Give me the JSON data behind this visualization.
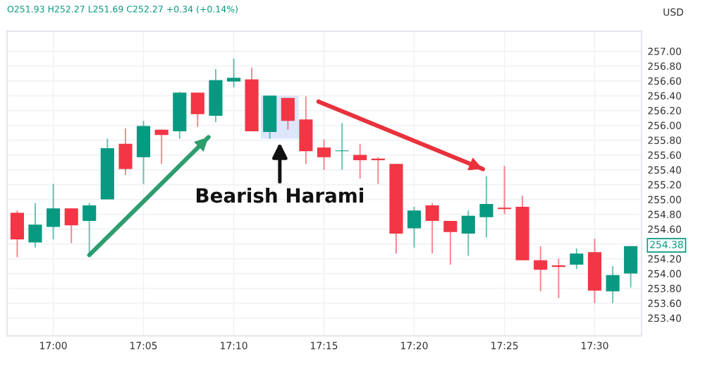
{
  "chart_data": {
    "type": "candlestick",
    "ylabel": "USD",
    "annotations": [
      "O251.93 H252.27 L251.69 C252.27 +0.34 (+0.14%)",
      "Bearish Harami",
      {
        "text": "254.38",
        "x": 17.5433,
        "y": 254.38
      }
    ],
    "x": [
      16.9667,
      16.9833,
      17.0,
      17.0167,
      17.0333,
      17.05,
      17.0667,
      17.0833,
      17.1,
      17.1167,
      17.1333,
      17.15,
      17.1667,
      17.1833,
      17.2,
      17.2167,
      17.2333,
      17.25,
      17.2667,
      17.2833,
      17.3,
      17.3167,
      17.3333,
      17.35,
      17.3667,
      17.3833,
      17.4,
      17.4167,
      17.4333,
      17.45,
      17.4667,
      17.4833,
      17.5,
      17.5167,
      17.5333
    ],
    "ohlc": [
      [
        254.82,
        254.85,
        254.22,
        254.46
      ],
      [
        254.42,
        254.95,
        254.35,
        254.66
      ],
      [
        254.63,
        255.21,
        254.46,
        254.88
      ],
      [
        254.88,
        254.88,
        254.41,
        254.65
      ],
      [
        254.71,
        254.95,
        254.25,
        254.92
      ],
      [
        255.0,
        255.82,
        255.0,
        255.69
      ],
      [
        255.75,
        255.96,
        255.33,
        255.41
      ],
      [
        255.57,
        256.06,
        255.21,
        255.99
      ],
      [
        255.94,
        255.94,
        255.48,
        255.87
      ],
      [
        255.92,
        256.45,
        255.82,
        256.44
      ],
      [
        256.44,
        256.44,
        255.98,
        256.15
      ],
      [
        256.13,
        256.76,
        256.04,
        256.61
      ],
      [
        256.59,
        256.9,
        256.51,
        256.64
      ],
      [
        256.62,
        256.78,
        255.92,
        255.92
      ],
      [
        255.91,
        256.4,
        255.82,
        256.4
      ],
      [
        256.37,
        256.37,
        255.94,
        256.06
      ],
      [
        256.08,
        256.39,
        255.48,
        255.65
      ],
      [
        255.7,
        255.81,
        255.4,
        255.57
      ],
      [
        255.65,
        256.03,
        255.4,
        255.66
      ],
      [
        255.6,
        255.75,
        255.28,
        255.53
      ],
      [
        255.55,
        255.57,
        255.21,
        255.53
      ],
      [
        255.48,
        255.48,
        254.27,
        254.54
      ],
      [
        254.61,
        254.9,
        254.35,
        254.85
      ],
      [
        254.92,
        254.95,
        254.27,
        254.71
      ],
      [
        254.71,
        254.71,
        254.12,
        254.56
      ],
      [
        254.54,
        254.85,
        254.24,
        254.78
      ],
      [
        254.76,
        255.31,
        254.49,
        254.94
      ],
      [
        254.89,
        255.45,
        254.8,
        254.87
      ],
      [
        254.9,
        255.05,
        254.18,
        254.18
      ],
      [
        254.18,
        254.37,
        253.76,
        254.05
      ],
      [
        254.11,
        254.2,
        253.67,
        254.09
      ],
      [
        254.12,
        254.34,
        254.06,
        254.27
      ],
      [
        254.29,
        254.47,
        253.6,
        253.77
      ],
      [
        253.76,
        254.1,
        253.6,
        253.98
      ],
      [
        254.0,
        254.37,
        253.81,
        254.37
      ]
    ],
    "colors": [
      "#f23645",
      "#089981",
      "#089981",
      "#f23645",
      "#089981",
      "#089981",
      "#f23645",
      "#089981",
      "#f23645",
      "#089981",
      "#f23645",
      "#089981",
      "#089981",
      "#f23645",
      "#089981",
      "#f23645",
      "#f23645",
      "#f23645",
      "#089981",
      "#f23645",
      "#f23645",
      "#f23645",
      "#089981",
      "#f23645",
      "#f23645",
      "#089981",
      "#089981",
      "#f23645",
      "#f23645",
      "#f23645",
      "#f23645",
      "#089981",
      "#f23645",
      "#089981",
      "#089981"
    ],
    "series": [
      {
        "type": "line",
        "color": "#2e9e6e",
        "x": [
          17.0333,
          17.1433
        ],
        "values": [
          254.25,
          255.84
        ]
      },
      {
        "type": "line",
        "color": "#e8323c",
        "x": [
          17.245,
          17.3967
        ],
        "values": [
          256.32,
          255.41
        ]
      }
    ],
    "bands": [
      {
        "axis": "x",
        "from": 17.1917,
        "to": 17.2267,
        "color": "#dde6fb"
      }
    ],
    "xlim": [
      16.9573,
      17.5433
    ],
    "xticks": [
      {
        "value": 17.0,
        "label": "17:00"
      },
      {
        "value": 17.0833,
        "label": "17:05"
      },
      {
        "value": 17.1667,
        "label": "17:10"
      },
      {
        "value": 17.25,
        "label": "17:15"
      },
      {
        "value": 17.3333,
        "label": "17:20"
      },
      {
        "value": 17.4167,
        "label": "17:25"
      },
      {
        "value": 17.5,
        "label": "17:30"
      }
    ],
    "ylim": [
      253.16,
      257.27
    ],
    "yticks": [
      {
        "value": 253.4,
        "label": "253.40"
      },
      {
        "value": 253.6,
        "label": "253.60"
      },
      {
        "value": 253.8,
        "label": "253.80"
      },
      {
        "value": 254.0,
        "label": "254.00"
      },
      {
        "value": 254.2,
        "label": "254.20"
      },
      {
        "value": 254.4,
        "label": null
      },
      {
        "value": 254.6,
        "label": "254.60"
      },
      {
        "value": 254.8,
        "label": "254.80"
      },
      {
        "value": 255.0,
        "label": "255.00"
      },
      {
        "value": 255.2,
        "label": "255.20"
      },
      {
        "value": 255.4,
        "label": "255.40"
      },
      {
        "value": 255.6,
        "label": "255.60"
      },
      {
        "value": 255.8,
        "label": "255.80"
      },
      {
        "value": 256.0,
        "label": "256.00"
      },
      {
        "value": 256.2,
        "label": "256.20"
      },
      {
        "value": 256.4,
        "label": "256.40"
      },
      {
        "value": 256.6,
        "label": "256.60"
      },
      {
        "value": 256.8,
        "label": "256.80"
      },
      {
        "value": 257.0,
        "label": "257.00"
      }
    ],
    "grid": true
  }
}
